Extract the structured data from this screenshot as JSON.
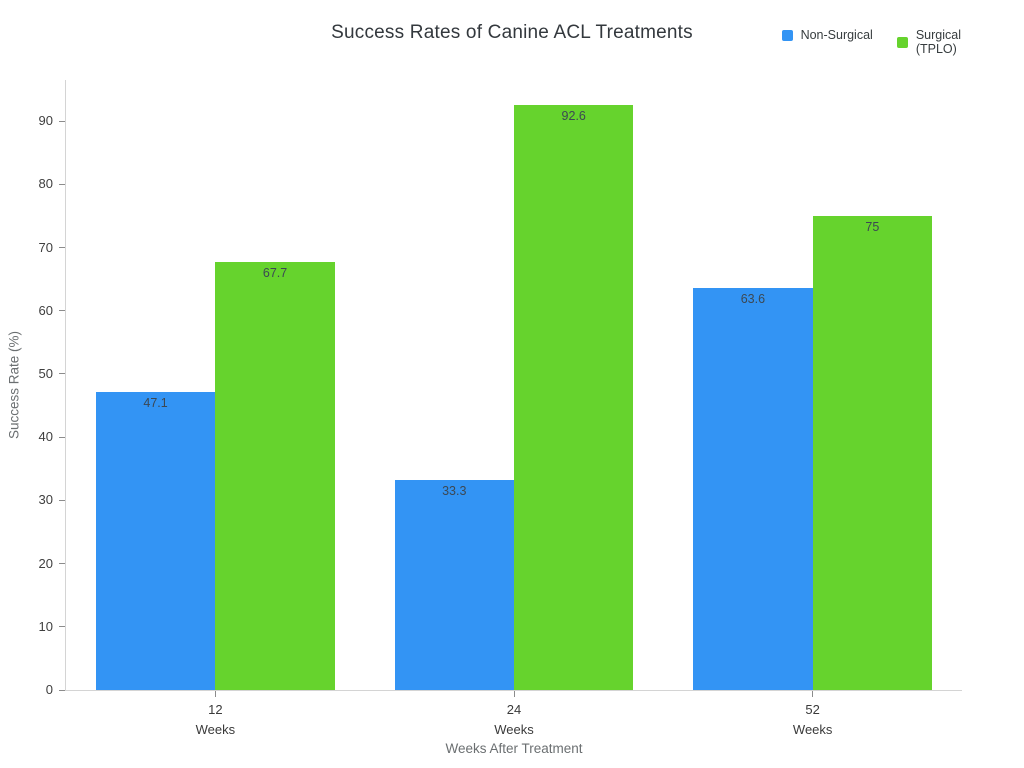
{
  "title": "Success Rates of Canine ACL Treatments",
  "legend": {
    "items": [
      {
        "label": "Non-Surgical",
        "color": "#3394F4"
      },
      {
        "label": "Surgical\n(TPLO)",
        "color": "#66D32D"
      }
    ]
  },
  "chart_data": {
    "type": "bar",
    "title": "Success Rates of Canine ACL Treatments",
    "categories": [
      "12 Weeks",
      "24 Weeks",
      "52 Weeks"
    ],
    "series": [
      {
        "name": "Non-Surgical",
        "color": "#3394F4",
        "values": [
          47.1,
          33.3,
          63.6
        ]
      },
      {
        "name": "Surgical (TPLO)",
        "color": "#66D32D",
        "values": [
          67.7,
          92.6,
          75
        ]
      }
    ],
    "xlabel": "Weeks After Treatment",
    "ylabel": "Success Rate (%)",
    "ylim": [
      0,
      96.5
    ],
    "yticks": [
      0,
      10,
      20,
      30,
      40,
      50,
      60,
      70,
      80,
      90
    ],
    "grid": false,
    "legend_position": "top-right",
    "bar_value_labels": "inside-top"
  }
}
